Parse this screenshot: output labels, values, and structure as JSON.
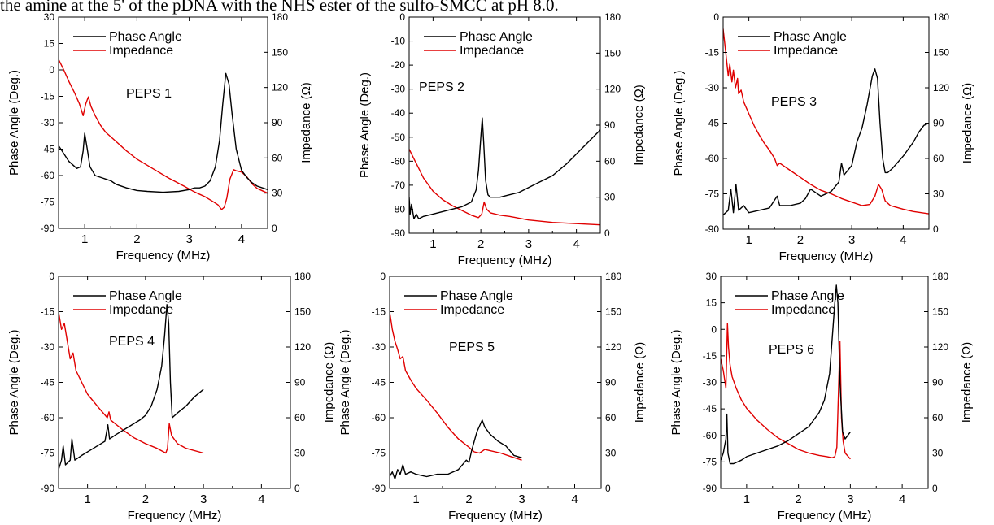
{
  "header": {
    "text": "the amine at the 5' of the pDNA with the NHS ester of the sulfo-SMCC at pH 8.0."
  },
  "chart_data": [
    {
      "type": "line",
      "label": "PEPS 1",
      "xlabel": "Frequency (MHz)",
      "ylabel_left": "Phase Angle (Deg.)",
      "ylabel_right": "Impedance (Ω)",
      "xlim": [
        0.5,
        4.5
      ],
      "xticks": [
        1,
        2,
        3,
        4
      ],
      "ylim_left": [
        -90,
        30
      ],
      "yticks_left": [
        -90,
        -75,
        -60,
        -45,
        -30,
        -15,
        0,
        15,
        30
      ],
      "ylim_right": [
        0,
        180
      ],
      "yticks_right": [
        0,
        30,
        60,
        90,
        120,
        150,
        180
      ],
      "series": [
        {
          "name": "Phase Angle",
          "axis": "left",
          "color": "#000000",
          "x": [
            0.5,
            0.7,
            0.85,
            0.92,
            0.97,
            1.0,
            1.05,
            1.1,
            1.2,
            1.4,
            1.5,
            1.6,
            1.8,
            2.0,
            2.2,
            2.5,
            2.8,
            3.0,
            3.1,
            3.2,
            3.3,
            3.4,
            3.5,
            3.58,
            3.64,
            3.7,
            3.76,
            3.82,
            3.9,
            4.0,
            4.1,
            4.2,
            4.3,
            4.5
          ],
          "y": [
            -43,
            -52,
            -56,
            -55,
            -46,
            -36,
            -45,
            -55,
            -60,
            -62,
            -63,
            -65,
            -67,
            -68.5,
            -69,
            -69.5,
            -69,
            -68,
            -67,
            -67,
            -66,
            -63,
            -55,
            -40,
            -20,
            -2,
            -8,
            -25,
            -45,
            -57,
            -61,
            -64,
            -66,
            -68
          ]
        },
        {
          "name": "Impedance",
          "axis": "right",
          "color": "#e00000",
          "x": [
            0.5,
            0.6,
            0.7,
            0.8,
            0.9,
            0.97,
            1.02,
            1.07,
            1.12,
            1.2,
            1.3,
            1.4,
            1.6,
            1.8,
            2.0,
            2.3,
            2.6,
            2.9,
            3.1,
            3.3,
            3.45,
            3.55,
            3.62,
            3.67,
            3.72,
            3.78,
            3.85,
            3.9,
            4.0,
            4.1,
            4.2,
            4.3,
            4.4,
            4.5
          ],
          "y": [
            144,
            135,
            125,
            116,
            106,
            96,
            106,
            112,
            104,
            96,
            88,
            82,
            74,
            66,
            59,
            51,
            43,
            36,
            31,
            27,
            23,
            20,
            16,
            18,
            26,
            42,
            50,
            49,
            48,
            44,
            38,
            34,
            32,
            30
          ]
        }
      ]
    },
    {
      "type": "line",
      "label": "PEPS 2",
      "xlabel": "Frequency (MHz)",
      "ylabel_left": "Phase Angle (Deg.)",
      "ylabel_right": "Impedance (Ω)",
      "xlim": [
        0.5,
        4.5
      ],
      "xticks": [
        1,
        2,
        3,
        4
      ],
      "ylim_left": [
        -90,
        0
      ],
      "yticks_left": [
        -90,
        -80,
        -70,
        -60,
        -50,
        -40,
        -30,
        -20,
        -10,
        0
      ],
      "ylim_right": [
        0,
        180
      ],
      "yticks_right": [
        0,
        30,
        60,
        90,
        120,
        150,
        180
      ],
      "series": [
        {
          "name": "Phase Angle",
          "axis": "left",
          "color": "#000000",
          "x": [
            0.5,
            0.52,
            0.55,
            0.6,
            0.65,
            0.7,
            0.8,
            1.0,
            1.2,
            1.4,
            1.6,
            1.8,
            1.9,
            1.95,
            2.0,
            2.03,
            2.06,
            2.1,
            2.15,
            2.2,
            2.3,
            2.4,
            2.6,
            2.8,
            3.0,
            3.2,
            3.5,
            3.8,
            4.0,
            4.2,
            4.5
          ],
          "y": [
            -75,
            -82,
            -78,
            -84,
            -82,
            -84,
            -83,
            -82,
            -81,
            -80,
            -79,
            -77,
            -72,
            -64,
            -50,
            -42,
            -52,
            -68,
            -74,
            -75,
            -75,
            -75,
            -74,
            -73,
            -71,
            -69,
            -66,
            -61,
            -57,
            -53,
            -47
          ]
        },
        {
          "name": "Impedance",
          "axis": "right",
          "color": "#e00000",
          "x": [
            0.5,
            0.6,
            0.7,
            0.8,
            1.0,
            1.2,
            1.4,
            1.6,
            1.8,
            1.95,
            2.02,
            2.07,
            2.12,
            2.2,
            2.4,
            2.6,
            3.0,
            3.5,
            4.0,
            4.5
          ],
          "y": [
            70,
            62,
            54,
            46,
            35,
            28,
            23,
            19,
            15,
            13,
            16,
            26,
            20,
            17,
            15,
            14,
            11,
            9,
            8,
            7
          ]
        }
      ]
    },
    {
      "type": "line",
      "label": "PEPS 3",
      "xlabel": "Frequency (MHz)",
      "ylabel_left": "Phase Angle (Deg.)",
      "ylabel_right": "Impedance (Ω)",
      "xlim": [
        0.5,
        4.5
      ],
      "xticks": [
        1,
        2,
        3,
        4
      ],
      "ylim_left": [
        -90,
        0
      ],
      "yticks_left": [
        -90,
        -75,
        -60,
        -45,
        -30,
        -15,
        0
      ],
      "ylim_right": [
        0,
        180
      ],
      "yticks_right": [
        0,
        30,
        60,
        90,
        120,
        150,
        180
      ],
      "series": [
        {
          "name": "Phase Angle",
          "axis": "left",
          "color": "#000000",
          "x": [
            0.5,
            0.6,
            0.65,
            0.7,
            0.75,
            0.8,
            0.9,
            1.0,
            1.2,
            1.4,
            1.55,
            1.6,
            1.8,
            2.0,
            2.1,
            2.2,
            2.4,
            2.6,
            2.75,
            2.8,
            2.85,
            3.0,
            3.1,
            3.2,
            3.3,
            3.4,
            3.45,
            3.5,
            3.55,
            3.6,
            3.65,
            3.7,
            3.8,
            4.0,
            4.2,
            4.3,
            4.4,
            4.5
          ],
          "y": [
            -84,
            -82,
            -73,
            -83,
            -71,
            -82,
            -80,
            -83,
            -82,
            -81,
            -76,
            -80,
            -80,
            -79,
            -77,
            -73,
            -76,
            -74,
            -70,
            -62,
            -67,
            -63,
            -53,
            -47,
            -37,
            -25,
            -22,
            -26,
            -45,
            -60,
            -66,
            -66,
            -64,
            -59,
            -53,
            -49,
            -46,
            -45
          ]
        },
        {
          "name": "Impedance",
          "axis": "right",
          "color": "#e00000",
          "x": [
            0.5,
            0.55,
            0.6,
            0.63,
            0.67,
            0.7,
            0.74,
            0.78,
            0.8,
            0.85,
            0.9,
            1.0,
            1.1,
            1.2,
            1.3,
            1.4,
            1.5,
            1.55,
            1.6,
            1.8,
            2.0,
            2.2,
            2.4,
            2.6,
            2.8,
            3.0,
            3.2,
            3.35,
            3.45,
            3.52,
            3.58,
            3.65,
            3.75,
            4.0,
            4.2,
            4.5
          ],
          "y": [
            170,
            150,
            130,
            140,
            125,
            135,
            120,
            128,
            115,
            118,
            108,
            98,
            88,
            80,
            73,
            67,
            60,
            54,
            56,
            50,
            44,
            38,
            33,
            30,
            26,
            23,
            20,
            21,
            28,
            38,
            34,
            24,
            20,
            17,
            15,
            13
          ]
        }
      ]
    },
    {
      "type": "line",
      "label": "PEPS 4",
      "xlabel": "Frequency (MHz)",
      "ylabel_left": "Phase Angle (Deg.)",
      "ylabel_right": "Impedance (Ω)",
      "xlim": [
        0.5,
        4.5
      ],
      "xticks": [
        1,
        2,
        3,
        4
      ],
      "ylim_left": [
        -90,
        0
      ],
      "yticks_left": [
        -90,
        -75,
        -60,
        -45,
        -30,
        -15,
        0
      ],
      "ylim_right": [
        0,
        180
      ],
      "yticks_right": [
        0,
        30,
        60,
        90,
        120,
        150,
        180
      ],
      "series": [
        {
          "name": "Phase Angle",
          "axis": "left",
          "color": "#000000",
          "x": [
            0.5,
            0.55,
            0.58,
            0.62,
            0.7,
            0.73,
            0.78,
            0.9,
            1.1,
            1.3,
            1.35,
            1.38,
            1.5,
            1.7,
            1.9,
            2.0,
            2.1,
            2.2,
            2.28,
            2.33,
            2.37,
            2.4,
            2.43,
            2.46,
            2.55,
            2.7,
            2.85,
            3.0
          ],
          "y": [
            -82,
            -78,
            -72,
            -80,
            -78,
            -69,
            -78,
            -76,
            -73,
            -70,
            -63,
            -69,
            -67,
            -64,
            -61,
            -59,
            -55,
            -48,
            -38,
            -25,
            -12,
            -20,
            -45,
            -60,
            -58,
            -55,
            -51,
            -48
          ]
        },
        {
          "name": "Impedance",
          "axis": "right",
          "color": "#e00000",
          "x": [
            0.5,
            0.55,
            0.6,
            0.65,
            0.7,
            0.75,
            0.8,
            0.9,
            1.0,
            1.2,
            1.34,
            1.37,
            1.4,
            1.6,
            1.8,
            2.0,
            2.2,
            2.35,
            2.38,
            2.41,
            2.45,
            2.55,
            2.7,
            3.0
          ],
          "y": [
            150,
            135,
            140,
            125,
            110,
            115,
            100,
            90,
            80,
            68,
            60,
            65,
            58,
            50,
            43,
            38,
            34,
            30,
            34,
            55,
            45,
            38,
            34,
            30
          ]
        }
      ]
    },
    {
      "type": "line",
      "label": "PEPS 5",
      "xlabel": "Frequency (MHz)",
      "ylabel_left": "Phase Angle (Deg.)",
      "ylabel_right": "Impedance (Ω)",
      "xlim": [
        0.5,
        4.5
      ],
      "xticks": [
        1,
        2,
        3,
        4
      ],
      "ylim_left": [
        -90,
        0
      ],
      "yticks_left": [
        -90,
        -75,
        -60,
        -45,
        -30,
        -15,
        0
      ],
      "ylim_right": [
        0,
        180
      ],
      "yticks_right": [
        0,
        30,
        60,
        90,
        120,
        150,
        180
      ],
      "series": [
        {
          "name": "Phase Angle",
          "axis": "left",
          "color": "#000000",
          "x": [
            0.5,
            0.55,
            0.6,
            0.65,
            0.7,
            0.75,
            0.8,
            0.9,
            1.0,
            1.2,
            1.4,
            1.6,
            1.8,
            1.95,
            2.0,
            2.05,
            2.15,
            2.25,
            2.3,
            2.4,
            2.55,
            2.7,
            2.85,
            3.0
          ],
          "y": [
            -85,
            -83,
            -86,
            -82,
            -84,
            -80,
            -84,
            -83,
            -84,
            -85,
            -84,
            -84,
            -82,
            -78,
            -79,
            -74,
            -66,
            -61,
            -64,
            -67,
            -70,
            -72,
            -76,
            -77
          ]
        },
        {
          "name": "Impedance",
          "axis": "right",
          "color": "#e00000",
          "x": [
            0.5,
            0.55,
            0.6,
            0.65,
            0.7,
            0.75,
            0.8,
            0.9,
            1.0,
            1.2,
            1.4,
            1.6,
            1.8,
            2.0,
            2.1,
            2.2,
            2.3,
            2.4,
            2.6,
            2.8,
            3.0
          ],
          "y": [
            150,
            135,
            125,
            118,
            110,
            112,
            100,
            92,
            85,
            75,
            64,
            52,
            42,
            35,
            31,
            30,
            33,
            32,
            30,
            27,
            24
          ]
        }
      ]
    },
    {
      "type": "line",
      "label": "PEPS 6",
      "xlabel": "Frequency (MHz)",
      "ylabel_left": "Phase Angle (Deg.)",
      "ylabel_right": "Impedance (Ω)",
      "xlim": [
        0.5,
        4.5
      ],
      "xticks": [
        1,
        2,
        3,
        4
      ],
      "ylim_left": [
        -90,
        30
      ],
      "yticks_left": [
        -90,
        -75,
        -60,
        -45,
        -30,
        -15,
        0,
        15,
        30
      ],
      "ylim_right": [
        0,
        180
      ],
      "yticks_right": [
        0,
        30,
        60,
        90,
        120,
        150,
        180
      ],
      "series": [
        {
          "name": "Phase Angle",
          "axis": "left",
          "color": "#000000",
          "x": [
            0.5,
            0.55,
            0.6,
            0.62,
            0.64,
            0.68,
            0.75,
            0.9,
            1.0,
            1.2,
            1.4,
            1.6,
            1.8,
            2.0,
            2.2,
            2.4,
            2.5,
            2.6,
            2.65,
            2.7,
            2.73,
            2.76,
            2.8,
            2.85,
            2.9,
            3.0
          ],
          "y": [
            -74,
            -70,
            -62,
            -48,
            -70,
            -76,
            -76,
            -74,
            -72,
            -70,
            -68,
            -66,
            -63,
            -59,
            -55,
            -47,
            -40,
            -25,
            -5,
            15,
            25,
            15,
            -30,
            -58,
            -62,
            -58
          ]
        },
        {
          "name": "Impedance",
          "axis": "right",
          "color": "#e00000",
          "x": [
            0.5,
            0.55,
            0.6,
            0.63,
            0.65,
            0.68,
            0.72,
            0.8,
            0.9,
            1.0,
            1.2,
            1.4,
            1.6,
            1.8,
            2.0,
            2.2,
            2.4,
            2.55,
            2.65,
            2.7,
            2.74,
            2.77,
            2.8,
            2.83,
            2.86,
            2.9,
            3.0
          ],
          "y": [
            110,
            100,
            85,
            140,
            120,
            105,
            95,
            85,
            75,
            68,
            58,
            50,
            43,
            38,
            33,
            30,
            28,
            27,
            26,
            27,
            35,
            80,
            125,
            60,
            40,
            30,
            25
          ]
        }
      ]
    }
  ]
}
